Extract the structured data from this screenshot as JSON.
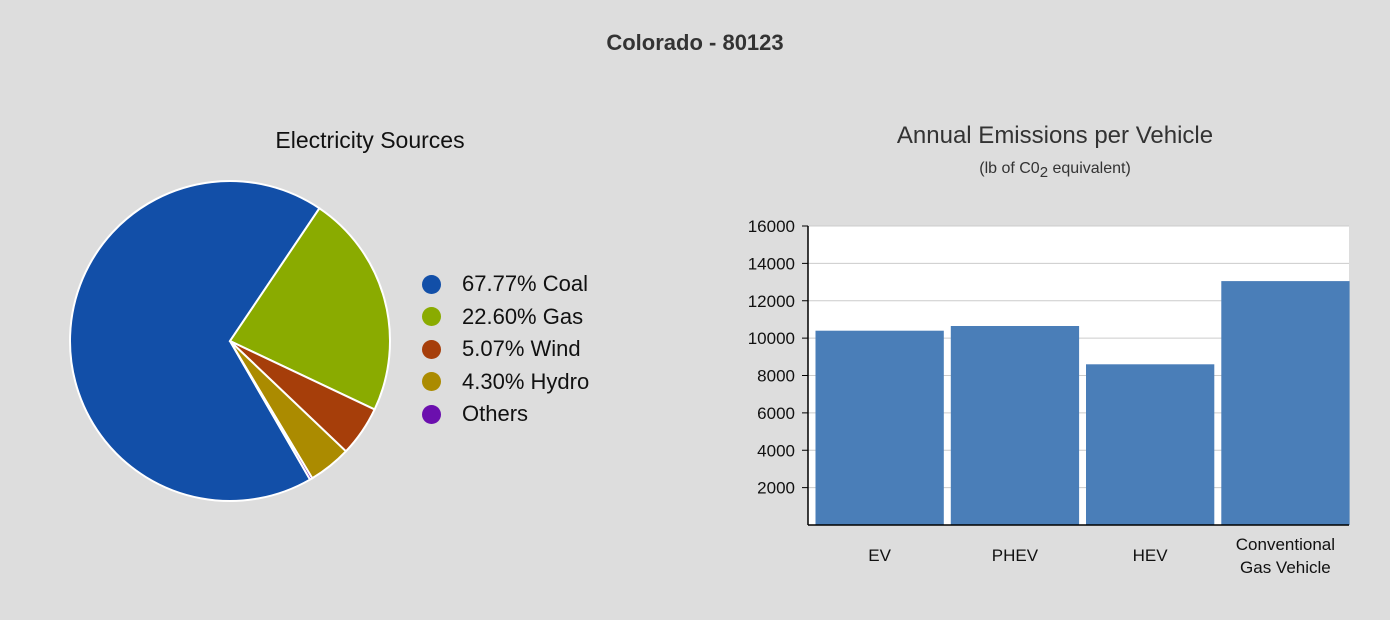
{
  "page": {
    "title": "Colorado - 80123"
  },
  "chart_data": [
    {
      "type": "pie",
      "title": "Electricity Sources",
      "slices": [
        {
          "label": "67.77% Coal",
          "value": 67.77,
          "color": "#124fa8"
        },
        {
          "label": "22.60% Gas",
          "value": 22.6,
          "color": "#8aab00"
        },
        {
          "label": "5.07% Wind",
          "value": 5.07,
          "color": "#a63e0a"
        },
        {
          "label": "4.30% Hydro",
          "value": 4.3,
          "color": "#ab8b00"
        },
        {
          "label": "Others",
          "value": 0.26,
          "color": "#6b0fae"
        }
      ],
      "legend_position": "right"
    },
    {
      "type": "bar",
      "title": "Annual Emissions per Vehicle",
      "subtitle_prefix": "(lb of C0",
      "subtitle_sub": "2",
      "subtitle_suffix": " equivalent)",
      "categories": [
        "EV",
        "PHEV",
        "HEV",
        "Conventional Gas Vehicle"
      ],
      "category_lines": [
        [
          "EV"
        ],
        [
          "PHEV"
        ],
        [
          "HEV"
        ],
        [
          "Conventional",
          "Gas Vehicle"
        ]
      ],
      "values": [
        10400,
        10650,
        8600,
        13050
      ],
      "ylim": [
        0,
        16000
      ],
      "yticks": [
        2000,
        4000,
        6000,
        8000,
        10000,
        12000,
        14000,
        16000
      ],
      "bar_color": "#4a7eb8",
      "grid": true
    }
  ]
}
